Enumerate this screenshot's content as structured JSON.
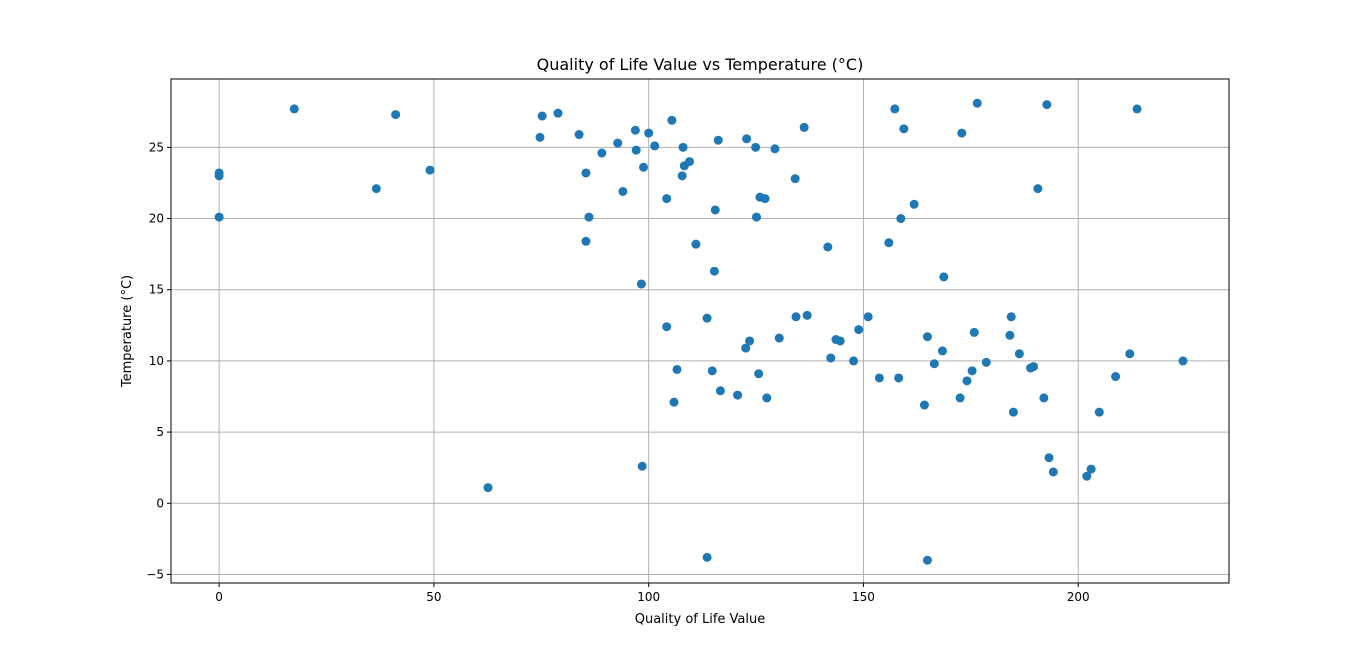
{
  "chart_data": {
    "type": "scatter",
    "title": "Quality of Life Value vs Temperature (°C)",
    "xlabel": "Quality of Life Value",
    "ylabel": "Temperature (°C)",
    "xlim": [
      -11.2,
      235.1
    ],
    "ylim": [
      -5.6,
      29.8
    ],
    "xticks": [
      0,
      50,
      100,
      150,
      200
    ],
    "yticks": [
      -5,
      0,
      5,
      10,
      15,
      20,
      25
    ],
    "grid": true,
    "color": "#1f77b4",
    "points": [
      [
        0,
        23.2
      ],
      [
        0,
        23.0
      ],
      [
        0,
        20.1
      ],
      [
        17.5,
        27.7
      ],
      [
        36.6,
        22.1
      ],
      [
        41.1,
        27.3
      ],
      [
        49.1,
        23.4
      ],
      [
        62.6,
        1.1
      ],
      [
        74.7,
        25.7
      ],
      [
        75.2,
        27.2
      ],
      [
        78.9,
        27.4
      ],
      [
        83.8,
        25.9
      ],
      [
        85.4,
        23.2
      ],
      [
        85.4,
        18.4
      ],
      [
        86.1,
        20.1
      ],
      [
        89.1,
        24.6
      ],
      [
        92.8,
        25.3
      ],
      [
        94.0,
        21.9
      ],
      [
        96.9,
        26.2
      ],
      [
        97.1,
        24.8
      ],
      [
        98.3,
        15.4
      ],
      [
        98.5,
        2.6
      ],
      [
        98.8,
        23.6
      ],
      [
        100.0,
        26.0
      ],
      [
        101.4,
        25.1
      ],
      [
        104.2,
        21.4
      ],
      [
        104.2,
        12.4
      ],
      [
        105.4,
        26.9
      ],
      [
        105.9,
        7.1
      ],
      [
        106.6,
        9.4
      ],
      [
        107.8,
        23.0
      ],
      [
        108.0,
        25.0
      ],
      [
        108.3,
        23.7
      ],
      [
        109.5,
        24.0
      ],
      [
        111.0,
        18.2
      ],
      [
        113.6,
        13.0
      ],
      [
        113.6,
        -3.8
      ],
      [
        114.8,
        9.3
      ],
      [
        115.3,
        16.3
      ],
      [
        115.5,
        20.6
      ],
      [
        116.2,
        25.5
      ],
      [
        116.7,
        7.9
      ],
      [
        120.7,
        7.6
      ],
      [
        122.6,
        10.9
      ],
      [
        122.8,
        25.6
      ],
      [
        123.5,
        11.4
      ],
      [
        124.9,
        25.0
      ],
      [
        125.1,
        20.1
      ],
      [
        125.6,
        9.1
      ],
      [
        125.9,
        21.5
      ],
      [
        127.1,
        21.4
      ],
      [
        127.5,
        7.4
      ],
      [
        129.4,
        24.9
      ],
      [
        130.4,
        11.6
      ],
      [
        134.1,
        22.8
      ],
      [
        134.3,
        13.1
      ],
      [
        136.2,
        26.4
      ],
      [
        136.9,
        13.2
      ],
      [
        141.7,
        18.0
      ],
      [
        142.4,
        10.2
      ],
      [
        143.6,
        11.5
      ],
      [
        144.6,
        11.4
      ],
      [
        147.7,
        10.0
      ],
      [
        148.9,
        12.2
      ],
      [
        151.1,
        13.1
      ],
      [
        153.7,
        8.8
      ],
      [
        155.9,
        18.3
      ],
      [
        157.3,
        27.7
      ],
      [
        158.2,
        8.8
      ],
      [
        158.7,
        20.0
      ],
      [
        159.4,
        26.3
      ],
      [
        161.8,
        21.0
      ],
      [
        164.2,
        6.9
      ],
      [
        164.9,
        11.7
      ],
      [
        164.9,
        -4.0
      ],
      [
        166.5,
        9.8
      ],
      [
        168.4,
        10.7
      ],
      [
        168.7,
        15.9
      ],
      [
        172.5,
        7.4
      ],
      [
        172.9,
        26.0
      ],
      [
        174.1,
        8.6
      ],
      [
        175.3,
        9.3
      ],
      [
        175.8,
        12.0
      ],
      [
        176.5,
        28.1
      ],
      [
        178.6,
        9.9
      ],
      [
        184.1,
        11.8
      ],
      [
        184.4,
        13.1
      ],
      [
        184.9,
        6.4
      ],
      [
        186.3,
        10.5
      ],
      [
        188.9,
        9.5
      ],
      [
        189.6,
        9.6
      ],
      [
        190.6,
        22.1
      ],
      [
        192.0,
        7.4
      ],
      [
        192.7,
        28.0
      ],
      [
        193.2,
        3.2
      ],
      [
        194.2,
        2.2
      ],
      [
        202.0,
        1.9
      ],
      [
        203.0,
        2.4
      ],
      [
        204.9,
        6.4
      ],
      [
        208.7,
        8.9
      ],
      [
        212.0,
        10.5
      ],
      [
        213.7,
        27.7
      ],
      [
        224.4,
        10.0
      ]
    ]
  }
}
